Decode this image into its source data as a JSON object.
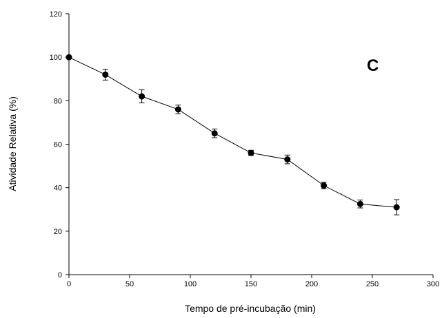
{
  "chart_data": {
    "type": "scatter",
    "title": "",
    "panel_label": "C",
    "xlabel": "Tempo de pré-incubação (min)",
    "ylabel": "Atividade Relativa (%)",
    "xlim": [
      0,
      300
    ],
    "ylim": [
      0,
      120
    ],
    "xticks": [
      "0",
      "50",
      "100",
      "150",
      "200",
      "250",
      "300"
    ],
    "yticks": [
      "0",
      "20",
      "40",
      "60",
      "80",
      "100",
      "120"
    ],
    "grid": false,
    "legend": "none",
    "series": [
      {
        "x": [
          0,
          30,
          60,
          90,
          120,
          150,
          180,
          210,
          240,
          270
        ],
        "y": [
          100,
          92,
          82,
          76,
          65,
          56,
          53,
          41,
          32.5,
          31
        ],
        "error": [
          0,
          2.5,
          3,
          2,
          2,
          1.2,
          2,
          1.5,
          1.8,
          3.5
        ],
        "line": true,
        "marker": "filled-circle",
        "color": "#000000"
      }
    ]
  }
}
